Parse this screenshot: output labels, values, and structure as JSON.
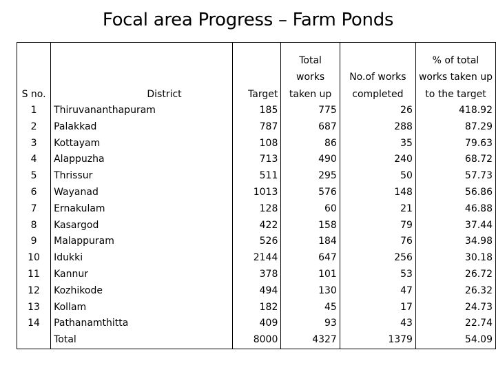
{
  "title": "Focal area Progress – Farm Ponds",
  "headers": {
    "sno": "S no.",
    "district": "District",
    "target": "Target",
    "works": [
      "Total",
      "works",
      "taken up"
    ],
    "completed": [
      "No.of works",
      "completed"
    ],
    "percent": [
      "% of total",
      "works taken up",
      "to the target"
    ]
  },
  "rows": [
    {
      "sno": "1",
      "district": "Thiruvananthapuram",
      "target": "185",
      "works": "775",
      "completed": "26",
      "percent": "418.92"
    },
    {
      "sno": "2",
      "district": "Palakkad",
      "target": "787",
      "works": "687",
      "completed": "288",
      "percent": "87.29"
    },
    {
      "sno": "3",
      "district": "Kottayam",
      "target": "108",
      "works": "86",
      "completed": "35",
      "percent": "79.63"
    },
    {
      "sno": "4",
      "district": "Alappuzha",
      "target": "713",
      "works": "490",
      "completed": "240",
      "percent": "68.72"
    },
    {
      "sno": "5",
      "district": "Thrissur",
      "target": "511",
      "works": "295",
      "completed": "50",
      "percent": "57.73"
    },
    {
      "sno": "6",
      "district": "Wayanad",
      "target": "1013",
      "works": "576",
      "completed": "148",
      "percent": "56.86"
    },
    {
      "sno": "7",
      "district": "Ernakulam",
      "target": "128",
      "works": "60",
      "completed": "21",
      "percent": "46.88"
    },
    {
      "sno": "8",
      "district": "Kasargod",
      "target": "422",
      "works": "158",
      "completed": "79",
      "percent": "37.44"
    },
    {
      "sno": "9",
      "district": "Malappuram",
      "target": "526",
      "works": "184",
      "completed": "76",
      "percent": "34.98"
    },
    {
      "sno": "10",
      "district": "Idukki",
      "target": "2144",
      "works": "647",
      "completed": "256",
      "percent": "30.18"
    },
    {
      "sno": "11",
      "district": "Kannur",
      "target": "378",
      "works": "101",
      "completed": "53",
      "percent": "26.72"
    },
    {
      "sno": "12",
      "district": "Kozhikode",
      "target": "494",
      "works": "130",
      "completed": "47",
      "percent": "26.32"
    },
    {
      "sno": "13",
      "district": "Kollam",
      "target": "182",
      "works": "45",
      "completed": "17",
      "percent": "24.73"
    },
    {
      "sno": "14",
      "district": "Pathanamthitta",
      "target": "409",
      "works": "93",
      "completed": "43",
      "percent": "22.74"
    },
    {
      "sno": "",
      "district": "Total",
      "target": "8000",
      "works": "4327",
      "completed": "1379",
      "percent": "54.09"
    }
  ]
}
